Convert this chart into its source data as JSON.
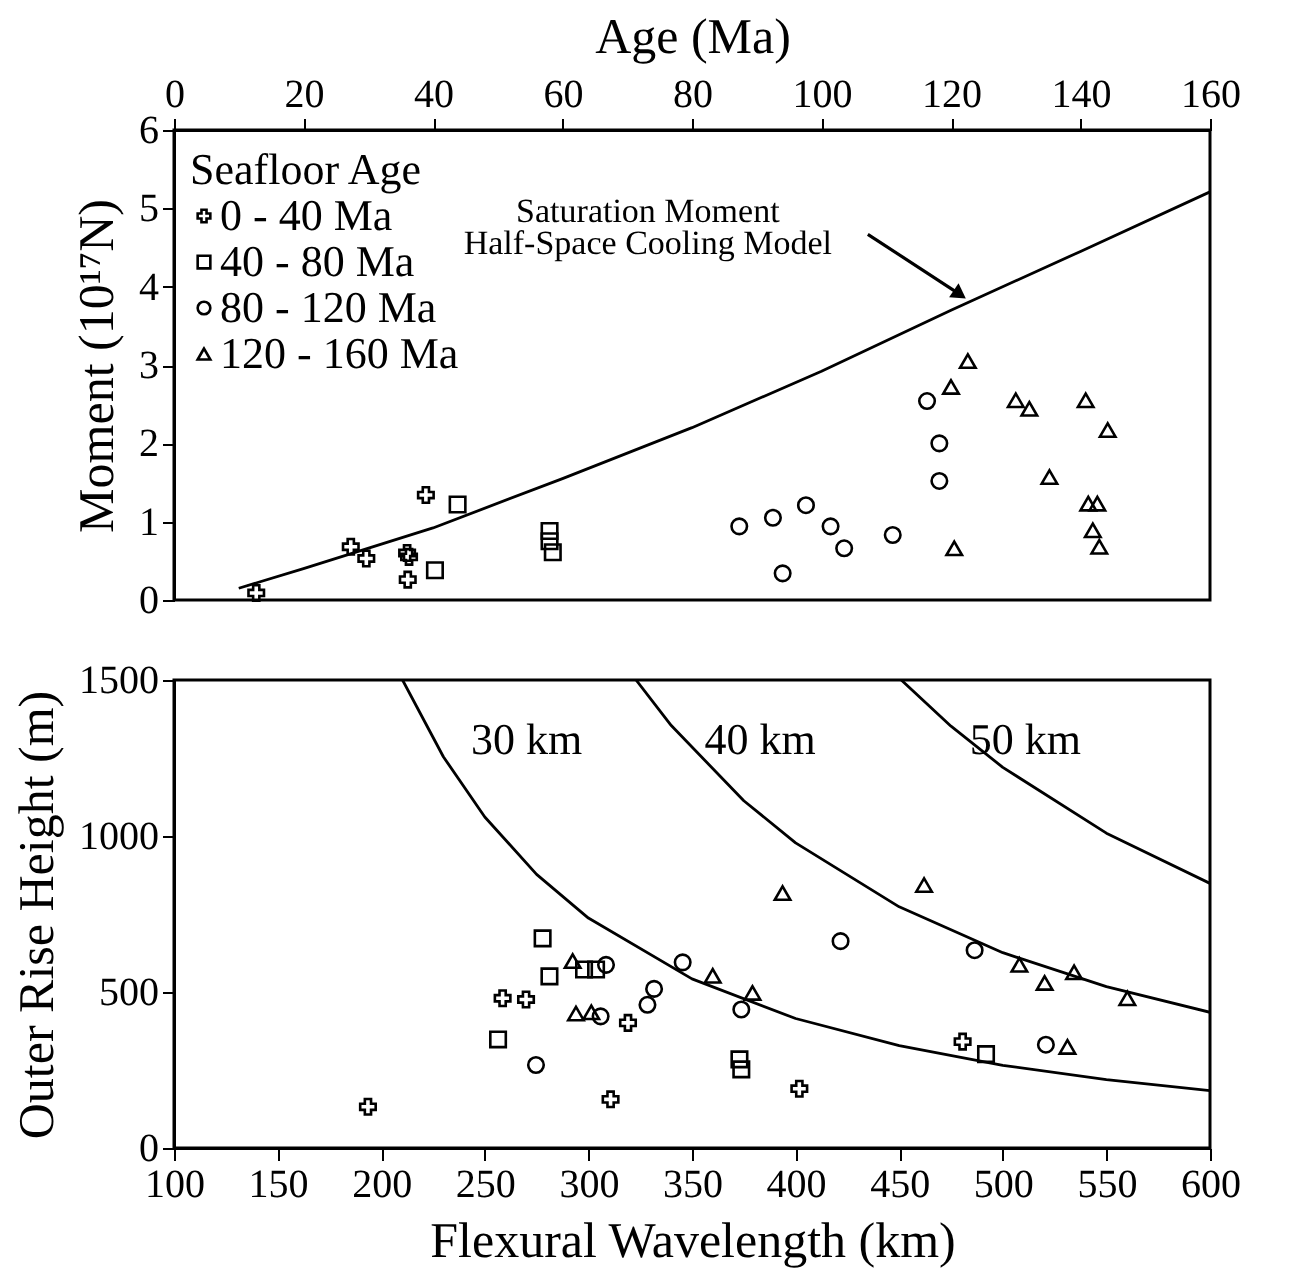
{
  "chart_data": [
    {
      "type": "scatter",
      "xlabel": "Age (Ma)",
      "ylabel": "Moment (10¹⁷N)",
      "legend_title": "Seafloor Age",
      "legend": "top left",
      "grid": false,
      "xlim": [
        0,
        160
      ],
      "xticks": [
        0,
        20,
        40,
        60,
        80,
        100,
        120,
        140,
        160
      ],
      "ylim": [
        0,
        6
      ],
      "yticks": [
        0,
        1,
        2,
        3,
        4,
        5,
        6
      ],
      "series": [
        {
          "name": "0 - 40 Ma",
          "color": "#000000",
          "marker": "cross",
          "x": [
            12.7,
            27.3,
            29.7,
            36.0,
            36.3,
            36.1,
            38.9
          ],
          "values": [
            0.09,
            0.68,
            0.53,
            0.6,
            0.55,
            0.26,
            1.34
          ]
        },
        {
          "name": "40 - 80 Ma",
          "color": "#000000",
          "marker": "square",
          "x": [
            43.8,
            40.3,
            58.0,
            58.0,
            58.5
          ],
          "values": [
            1.22,
            0.38,
            0.88,
            0.75,
            0.61
          ]
        },
        {
          "name": "80 - 120 Ma",
          "color": "#000000",
          "marker": "circle",
          "x": [
            87.3,
            92.5,
            94.0,
            97.6,
            101.4,
            103.5,
            111.0,
            116.3,
            118.2,
            118.2
          ],
          "values": [
            0.94,
            1.05,
            0.34,
            1.21,
            0.94,
            0.66,
            0.83,
            2.54,
            2.0,
            1.52
          ]
        },
        {
          "name": "120 - 160 Ma",
          "color": "#000000",
          "marker": "triangle",
          "x": [
            122.6,
            120.0,
            120.5,
            130.0,
            132.1,
            135.2,
            140.8,
            144.2,
            141.2,
            142.6,
            141.9,
            142.9
          ],
          "values": [
            3.05,
            2.72,
            0.66,
            2.55,
            2.44,
            1.57,
            2.55,
            2.17,
            1.23,
            1.23,
            0.89,
            0.68
          ]
        },
        {
          "type": "line",
          "color": "#000000",
          "marker": "none",
          "line_style": "solid",
          "x": [
            10,
            20,
            40,
            60,
            80,
            100,
            120,
            140,
            160
          ],
          "values": [
            0.15,
            0.4,
            0.92,
            1.55,
            2.2,
            2.92,
            3.7,
            4.45,
            5.21
          ]
        }
      ],
      "annotations": [
        {
          "text": "Saturation Moment\nHalf-Space Cooling Model",
          "x": 122.6,
          "y": 3.8
        }
      ]
    },
    {
      "type": "scatter",
      "xlabel": "Flexural Wavelength (km)",
      "ylabel": "Outer Rise Height (m)",
      "legend": false,
      "grid": false,
      "xlim": [
        100,
        600
      ],
      "xticks": [
        100,
        150,
        200,
        250,
        300,
        350,
        400,
        450,
        500,
        550,
        600
      ],
      "ylim": [
        0,
        1500
      ],
      "yticks": [
        0,
        500,
        {
          "value": 1000,
          "label": "1000"
        },
        {
          "value": 1500,
          "label": "1500"
        }
      ],
      "series": [
        {
          "color": "#000000",
          "marker": "cross",
          "x": [
            193.6,
            258.6,
            269.9,
            319.1,
            310.7,
            480.6,
            401.8
          ],
          "values": [
            132,
            480,
            476,
            401,
            156,
            341,
            190
          ]
        },
        {
          "color": "#000000",
          "marker": "square",
          "x": [
            277.9,
            281.2,
            256.4,
            297.9,
            303.7,
            372.9,
            373.8,
            491.9
          ],
          "values": [
            672,
            550,
            348,
            572,
            572,
            284,
            252,
            301
          ]
        },
        {
          "color": "#000000",
          "marker": "circle",
          "x": [
            274.7,
            305.9,
            308.5,
            328.5,
            331.7,
            345.5,
            373.8,
            421.7,
            486.4,
            520.8
          ],
          "values": [
            266,
            422,
            587,
            459,
            510,
            595,
            444,
            663,
            634,
            331
          ]
        },
        {
          "color": "#000000",
          "marker": "triangle",
          "x": [
            292.4,
            294.0,
            301.4,
            360.0,
            379.2,
            393.7,
            462.0,
            508.0,
            520.2,
            534.4,
            560.1,
            531.2
          ],
          "values": [
            599,
            431,
            435,
            552,
            497,
            817,
            843,
            587,
            529,
            563,
            480,
            324
          ]
        },
        {
          "type": "line",
          "color": "#000000",
          "marker": "none",
          "line_style": "solid",
          "x": [
            210.3,
            230,
            250,
            275,
            300,
            350,
            400,
            450,
            500,
            550,
            600
          ],
          "values": [
            1500,
            1254,
            1061,
            877,
            737,
            542,
            415,
            328,
            265,
            219,
            184
          ]
        },
        {
          "type": "line",
          "color": "#000000",
          "marker": "none",
          "line_style": "solid",
          "x": [
            323,
            340,
            375,
            400,
            450,
            500,
            550,
            600
          ],
          "values": [
            1500,
            1354,
            1113,
            978,
            773,
            626,
            517,
            435
          ]
        },
        {
          "type": "line",
          "color": "#000000",
          "marker": "none",
          "line_style": "solid",
          "x": [
            451,
            475,
            500,
            550,
            600
          ],
          "values": [
            1500,
            1352,
            1220,
            1009,
            848
          ]
        }
      ],
      "annotations": [
        "30 km",
        "40 km",
        "50 km"
      ]
    }
  ]
}
